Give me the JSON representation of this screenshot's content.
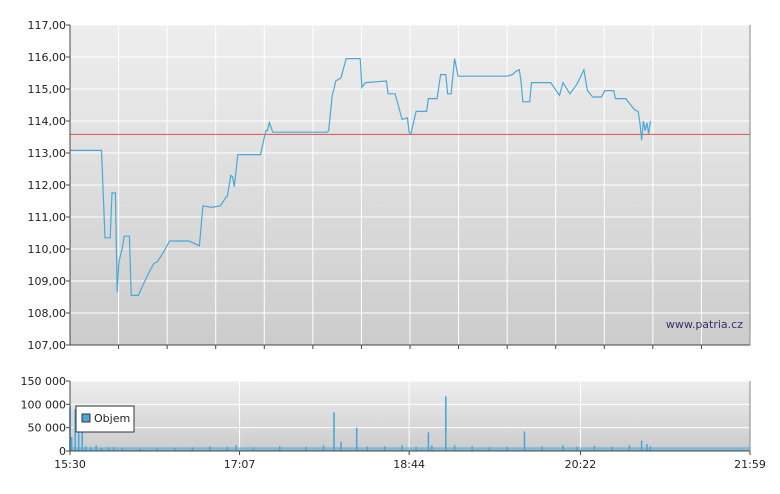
{
  "chart_data": [
    {
      "type": "line",
      "title": "",
      "xlabel": "",
      "ylabel": "",
      "ylim": [
        107,
        117
      ],
      "y_ticks": [
        "107,00",
        "108,00",
        "109,00",
        "110,00",
        "111,00",
        "112,00",
        "113,00",
        "114,00",
        "115,00",
        "116,00",
        "117,00"
      ],
      "watermark": "www.patria.cz",
      "grid": true,
      "reference_line": {
        "value": 113.58,
        "color": "#e06060"
      },
      "series": [
        {
          "color": "#4aa8d8",
          "points": [
            [
              "15:30",
              113.08
            ],
            [
              "15:48",
              113.08
            ],
            [
              "15:50",
              110.35
            ],
            [
              "15:53",
              110.35
            ],
            [
              "15:54",
              111.75
            ],
            [
              "15:56",
              111.75
            ],
            [
              "15:57",
              108.65
            ],
            [
              "15:58",
              109.6
            ],
            [
              "16:00",
              110.05
            ],
            [
              "16:01",
              110.4
            ],
            [
              "16:04",
              110.4
            ],
            [
              "16:05",
              108.55
            ],
            [
              "16:09",
              108.55
            ],
            [
              "16:12",
              108.9
            ],
            [
              "16:15",
              109.25
            ],
            [
              "16:18",
              109.55
            ],
            [
              "16:20",
              109.6
            ],
            [
              "16:24",
              109.95
            ],
            [
              "16:27",
              110.25
            ],
            [
              "16:38",
              110.25
            ],
            [
              "16:44",
              110.1
            ],
            [
              "16:46",
              111.35
            ],
            [
              "16:51",
              111.3
            ],
            [
              "16:56",
              111.35
            ],
            [
              "16:59",
              111.6
            ],
            [
              "17:00",
              111.65
            ],
            [
              "17:02",
              112.3
            ],
            [
              "17:03",
              112.25
            ],
            [
              "17:04",
              111.95
            ],
            [
              "17:06",
              112.95
            ],
            [
              "17:19",
              112.95
            ],
            [
              "17:22",
              113.7
            ],
            [
              "17:23",
              113.7
            ],
            [
              "17:24",
              113.95
            ],
            [
              "17:26",
              113.65
            ],
            [
              "17:57",
              113.65
            ],
            [
              "17:58",
              113.7
            ],
            [
              "18:00",
              114.8
            ],
            [
              "18:01",
              115.0
            ],
            [
              "18:02",
              115.25
            ],
            [
              "18:05",
              115.35
            ],
            [
              "18:06",
              115.55
            ],
            [
              "18:08",
              115.95
            ],
            [
              "18:16",
              115.95
            ],
            [
              "18:17",
              115.05
            ],
            [
              "18:19",
              115.2
            ],
            [
              "18:31",
              115.25
            ],
            [
              "18:32",
              114.85
            ],
            [
              "18:36",
              114.85
            ],
            [
              "18:38",
              114.45
            ],
            [
              "18:40",
              114.05
            ],
            [
              "18:43",
              114.1
            ],
            [
              "18:44",
              113.65
            ],
            [
              "18:45",
              113.6
            ],
            [
              "18:48",
              114.3
            ],
            [
              "18:54",
              114.3
            ],
            [
              "18:55",
              114.7
            ],
            [
              "19:00",
              114.7
            ],
            [
              "19:02",
              115.45
            ],
            [
              "19:05",
              115.45
            ],
            [
              "19:06",
              114.85
            ],
            [
              "19:08",
              114.85
            ],
            [
              "19:10",
              115.95
            ],
            [
              "19:12",
              115.4
            ],
            [
              "19:40",
              115.4
            ],
            [
              "19:43",
              115.45
            ],
            [
              "19:45",
              115.55
            ],
            [
              "19:47",
              115.6
            ],
            [
              "19:48",
              115.25
            ],
            [
              "19:49",
              114.6
            ],
            [
              "19:53",
              114.6
            ],
            [
              "19:54",
              115.2
            ],
            [
              "20:05",
              115.2
            ],
            [
              "20:10",
              114.8
            ],
            [
              "20:12",
              115.2
            ],
            [
              "20:16",
              114.85
            ],
            [
              "20:20",
              115.15
            ],
            [
              "20:24",
              115.6
            ],
            [
              "20:26",
              114.95
            ],
            [
              "20:29",
              114.75
            ],
            [
              "20:34",
              114.75
            ],
            [
              "20:36",
              114.95
            ],
            [
              "20:41",
              114.95
            ],
            [
              "20:42",
              114.7
            ],
            [
              "20:48",
              114.7
            ],
            [
              "20:50",
              114.55
            ],
            [
              "20:53",
              114.35
            ],
            [
              "20:55",
              114.3
            ],
            [
              "20:56",
              113.95
            ],
            [
              "20:57",
              113.4
            ],
            [
              "20:58",
              114.0
            ],
            [
              "20:59",
              113.7
            ],
            [
              "21:00",
              113.95
            ],
            [
              "21:01",
              113.6
            ],
            [
              "21:02",
              114.0
            ]
          ]
        }
      ]
    },
    {
      "type": "bar",
      "title": "",
      "ylim": [
        0,
        150000
      ],
      "y_ticks": [
        "0",
        "50 000",
        "100 000",
        "150 000"
      ],
      "x_ticks": [
        "15:30",
        "17:07",
        "18:44",
        "20:22",
        "21:59"
      ],
      "legend": {
        "label": "Objem",
        "position": "top-left"
      },
      "grid": true,
      "series": [
        {
          "name": "Objem",
          "color": "#4aa8d8",
          "bars": [
            [
              "15:30",
              95000
            ],
            [
              "15:31",
              30000
            ],
            [
              "15:33",
              90000
            ],
            [
              "15:35",
              90000
            ],
            [
              "15:37",
              88000
            ],
            [
              "15:39",
              10000
            ],
            [
              "15:42",
              8000
            ],
            [
              "15:45",
              12000
            ],
            [
              "15:48",
              6000
            ],
            [
              "15:52",
              8000
            ],
            [
              "15:55",
              9000
            ],
            [
              "16:00",
              7000
            ],
            [
              "16:10",
              5000
            ],
            [
              "16:20",
              6000
            ],
            [
              "16:30",
              7000
            ],
            [
              "16:40",
              8000
            ],
            [
              "16:50",
              10000
            ],
            [
              "17:00",
              9000
            ],
            [
              "17:05",
              12000
            ],
            [
              "17:15",
              8000
            ],
            [
              "17:30",
              10000
            ],
            [
              "17:45",
              9000
            ],
            [
              "17:55",
              12000
            ],
            [
              "18:01",
              83000
            ],
            [
              "18:05",
              20000
            ],
            [
              "18:14",
              50000
            ],
            [
              "18:20",
              9000
            ],
            [
              "18:30",
              10000
            ],
            [
              "18:40",
              12000
            ],
            [
              "18:48",
              9000
            ],
            [
              "18:55",
              40000
            ],
            [
              "18:57",
              12000
            ],
            [
              "19:05",
              117000
            ],
            [
              "19:10",
              12000
            ],
            [
              "19:20",
              10000
            ],
            [
              "19:30",
              8000
            ],
            [
              "19:40",
              9000
            ],
            [
              "19:50",
              42000
            ],
            [
              "20:00",
              10000
            ],
            [
              "20:12",
              12000
            ],
            [
              "20:20",
              9000
            ],
            [
              "20:30",
              11000
            ],
            [
              "20:40",
              9000
            ],
            [
              "20:50",
              12000
            ],
            [
              "20:57",
              22000
            ],
            [
              "21:00",
              15000
            ],
            [
              "21:02",
              10000
            ]
          ]
        }
      ]
    }
  ]
}
